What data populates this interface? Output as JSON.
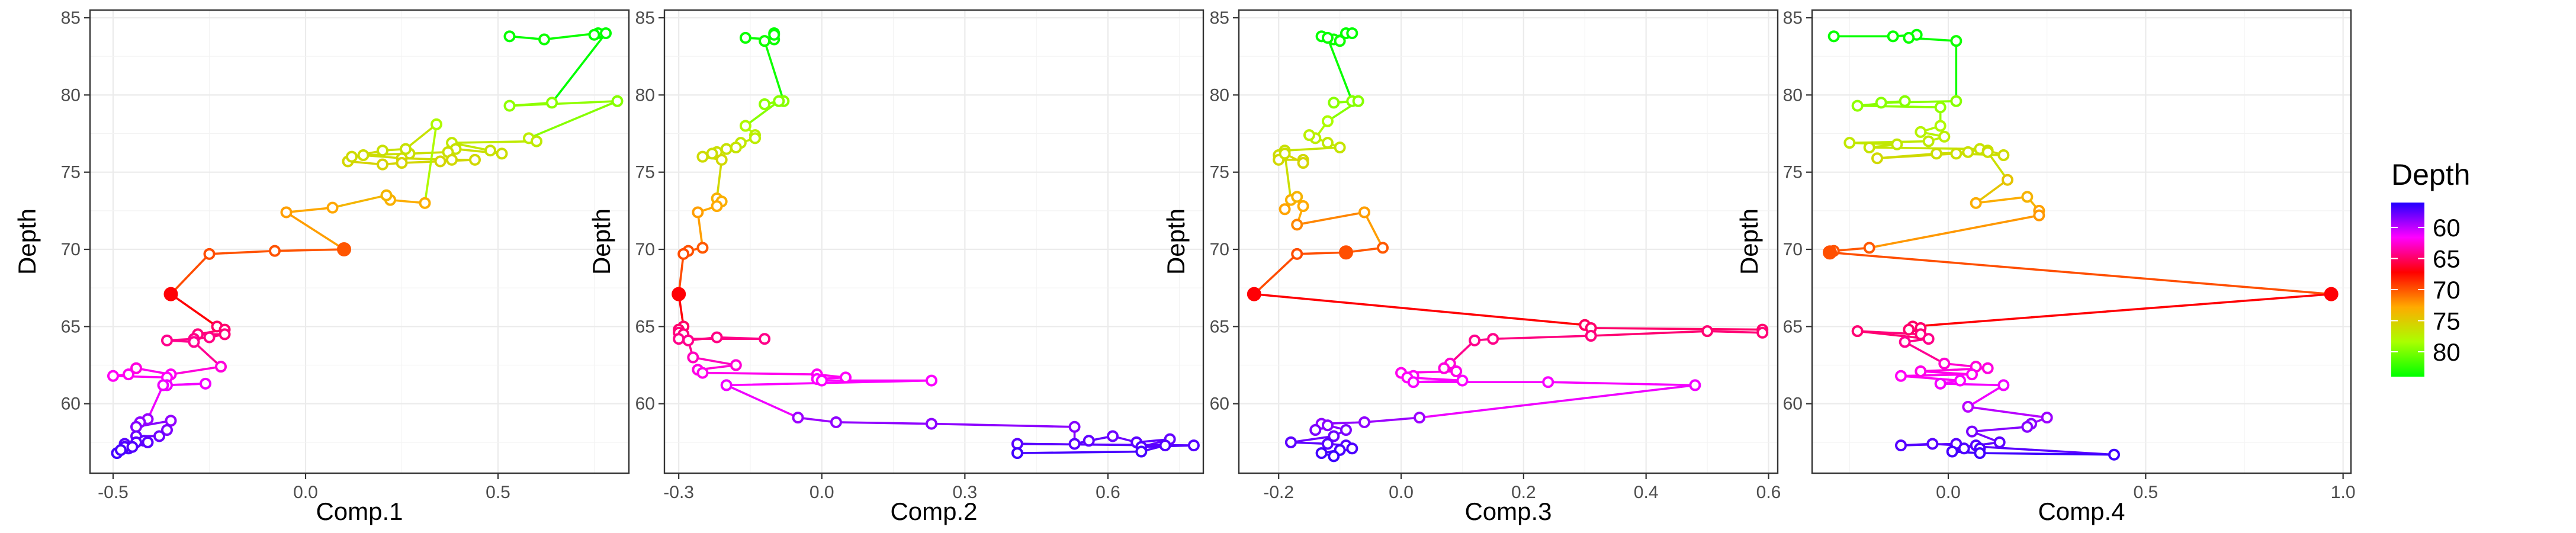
{
  "legend": {
    "title": "Depth",
    "labels": [
      "60",
      "65",
      "70",
      "75",
      "80"
    ],
    "values": [
      60,
      65,
      70,
      75,
      80
    ],
    "range": [
      56,
      84
    ],
    "gradient_colors": [
      "#2200ff",
      "#ff00ff",
      "#ff0000",
      "#ffaa00",
      "#aaff00",
      "#00ff00"
    ]
  },
  "chart_data": [
    {
      "type": "scatter",
      "connected": true,
      "xlabel": "Comp.1",
      "ylabel": "Depth",
      "xlim": [
        -0.56,
        0.84
      ],
      "ylim": [
        55.5,
        85.5
      ],
      "xticks": [
        -0.5,
        0.0,
        0.5
      ],
      "xtick_labels": [
        "-0.5",
        "0.0",
        "0.5"
      ],
      "yticks": [
        60,
        65,
        70,
        75,
        80,
        85
      ],
      "ytick_labels": [
        "60",
        "65",
        "70",
        "75",
        "80",
        "85"
      ],
      "highlight_depths": [
        67.1,
        69.8,
        70.0
      ],
      "grid": true,
      "points": [
        [
          0.53,
          83.8
        ],
        [
          0.62,
          83.6
        ],
        [
          0.76,
          84.0
        ],
        [
          0.75,
          83.9
        ],
        [
          0.78,
          84.0
        ],
        [
          0.64,
          79.5
        ],
        [
          0.53,
          79.3
        ],
        [
          0.81,
          79.6
        ],
        [
          0.58,
          77.2
        ],
        [
          0.6,
          77.0
        ],
        [
          0.38,
          76.9
        ],
        [
          0.48,
          76.4
        ],
        [
          0.51,
          76.2
        ],
        [
          0.39,
          76.5
        ],
        [
          0.37,
          76.3
        ],
        [
          0.27,
          76.2
        ],
        [
          0.15,
          76.1
        ],
        [
          0.25,
          75.9
        ],
        [
          0.38,
          75.8
        ],
        [
          0.44,
          75.8
        ],
        [
          0.35,
          75.7
        ],
        [
          0.25,
          75.6
        ],
        [
          0.2,
          75.5
        ],
        [
          0.11,
          75.7
        ],
        [
          0.12,
          76.0
        ],
        [
          0.2,
          76.4
        ],
        [
          0.26,
          76.5
        ],
        [
          0.34,
          78.1
        ],
        [
          0.31,
          73.0
        ],
        [
          0.22,
          73.2
        ],
        [
          0.21,
          73.5
        ],
        [
          0.07,
          72.7
        ],
        [
          -0.05,
          72.4
        ],
        [
          0.1,
          70.0
        ],
        [
          -0.08,
          69.9
        ],
        [
          -0.25,
          69.7
        ],
        [
          -0.35,
          67.1
        ],
        [
          -0.23,
          65.0
        ],
        [
          -0.21,
          64.8
        ],
        [
          -0.28,
          64.5
        ],
        [
          -0.21,
          64.5
        ],
        [
          -0.25,
          64.3
        ],
        [
          -0.29,
          64.2
        ],
        [
          -0.36,
          64.1
        ],
        [
          -0.29,
          64.0
        ],
        [
          -0.22,
          62.4
        ],
        [
          -0.35,
          61.9
        ],
        [
          -0.44,
          62.3
        ],
        [
          -0.46,
          61.9
        ],
        [
          -0.5,
          61.8
        ],
        [
          -0.36,
          61.7
        ],
        [
          -0.36,
          61.2
        ],
        [
          -0.26,
          61.3
        ],
        [
          -0.37,
          61.2
        ],
        [
          -0.41,
          59.0
        ],
        [
          -0.43,
          58.8
        ],
        [
          -0.44,
          58.5
        ],
        [
          -0.35,
          58.9
        ],
        [
          -0.36,
          58.3
        ],
        [
          -0.38,
          57.9
        ],
        [
          -0.44,
          57.9
        ],
        [
          -0.42,
          57.6
        ],
        [
          -0.44,
          57.5
        ],
        [
          -0.47,
          57.4
        ],
        [
          -0.46,
          57.1
        ],
        [
          -0.49,
          56.8
        ],
        [
          -0.47,
          57.2
        ],
        [
          -0.48,
          57.0
        ],
        [
          -0.41,
          57.5
        ],
        [
          -0.45,
          57.2
        ]
      ]
    },
    {
      "type": "scatter",
      "connected": true,
      "xlabel": "Comp.2",
      "ylabel": "Depth",
      "xlim": [
        -0.33,
        0.8
      ],
      "ylim": [
        55.5,
        85.5
      ],
      "xticks": [
        -0.3,
        0.0,
        0.3,
        0.6
      ],
      "xtick_labels": [
        "-0.3",
        "0.0",
        "0.3",
        "0.6"
      ],
      "yticks": [
        60,
        65,
        70,
        75,
        80,
        85
      ],
      "ytick_labels": [
        "60",
        "65",
        "70",
        "75",
        "80",
        "85"
      ],
      "highlight_depths": [
        67.1,
        69.8,
        70.0
      ],
      "grid": true,
      "points": [
        [
          -0.16,
          83.7
        ],
        [
          -0.1,
          83.6
        ],
        [
          -0.1,
          84.0
        ],
        [
          -0.1,
          83.9
        ],
        [
          -0.12,
          83.5
        ],
        [
          -0.08,
          79.6
        ],
        [
          -0.12,
          79.4
        ],
        [
          -0.09,
          79.6
        ],
        [
          -0.16,
          78.0
        ],
        [
          -0.14,
          77.4
        ],
        [
          -0.14,
          77.2
        ],
        [
          -0.17,
          76.9
        ],
        [
          -0.2,
          76.5
        ],
        [
          -0.22,
          76.3
        ],
        [
          -0.18,
          76.6
        ],
        [
          -0.23,
          76.2
        ],
        [
          -0.25,
          76.0
        ],
        [
          -0.21,
          75.8
        ],
        [
          -0.22,
          73.3
        ],
        [
          -0.21,
          73.1
        ],
        [
          -0.22,
          72.8
        ],
        [
          -0.26,
          72.4
        ],
        [
          -0.25,
          70.1
        ],
        [
          -0.28,
          69.9
        ],
        [
          -0.29,
          69.7
        ],
        [
          -0.3,
          67.1
        ],
        [
          -0.29,
          65.0
        ],
        [
          -0.3,
          64.8
        ],
        [
          -0.3,
          64.6
        ],
        [
          -0.29,
          64.5
        ],
        [
          -0.3,
          64.2
        ],
        [
          -0.12,
          64.2
        ],
        [
          -0.22,
          64.3
        ],
        [
          -0.28,
          64.1
        ],
        [
          -0.27,
          63.0
        ],
        [
          -0.18,
          62.5
        ],
        [
          -0.26,
          62.2
        ],
        [
          -0.25,
          62.0
        ],
        [
          -0.01,
          61.9
        ],
        [
          0.05,
          61.7
        ],
        [
          -0.01,
          61.6
        ],
        [
          0.0,
          61.5
        ],
        [
          0.23,
          61.5
        ],
        [
          -0.2,
          61.2
        ],
        [
          -0.05,
          59.1
        ],
        [
          0.03,
          58.8
        ],
        [
          0.23,
          58.7
        ],
        [
          0.53,
          58.5
        ],
        [
          0.53,
          57.4
        ],
        [
          0.56,
          57.6
        ],
        [
          0.61,
          57.9
        ],
        [
          0.66,
          57.5
        ],
        [
          0.73,
          57.7
        ],
        [
          0.67,
          57.2
        ],
        [
          0.78,
          57.3
        ],
        [
          0.41,
          57.4
        ],
        [
          0.72,
          57.3
        ],
        [
          0.67,
          56.9
        ],
        [
          0.41,
          56.8
        ]
      ]
    },
    {
      "type": "scatter",
      "connected": true,
      "xlabel": "Comp.3",
      "ylabel": "Depth",
      "xlim": [
        -0.265,
        0.615
      ],
      "ylim": [
        55.5,
        85.5
      ],
      "xticks": [
        -0.2,
        0.0,
        0.2,
        0.4,
        0.6
      ],
      "xtick_labels": [
        "-0.2",
        "0.0",
        "0.2",
        "0.4",
        "0.6"
      ],
      "yticks": [
        60,
        65,
        70,
        75,
        80,
        85
      ],
      "ytick_labels": [
        "60",
        "65",
        "70",
        "75",
        "80",
        "85"
      ],
      "highlight_depths": [
        67.1,
        69.8,
        70.0
      ],
      "grid": true,
      "points": [
        [
          -0.13,
          83.8
        ],
        [
          -0.11,
          83.6
        ],
        [
          -0.1,
          83.5
        ],
        [
          -0.09,
          84.0
        ],
        [
          -0.08,
          84.0
        ],
        [
          -0.12,
          83.7
        ],
        [
          -0.08,
          79.6
        ],
        [
          -0.11,
          79.5
        ],
        [
          -0.07,
          79.6
        ],
        [
          -0.12,
          78.3
        ],
        [
          -0.14,
          77.2
        ],
        [
          -0.15,
          77.4
        ],
        [
          -0.12,
          76.9
        ],
        [
          -0.1,
          76.6
        ],
        [
          -0.19,
          76.4
        ],
        [
          -0.2,
          76.1
        ],
        [
          -0.2,
          75.8
        ],
        [
          -0.16,
          75.8
        ],
        [
          -0.16,
          75.6
        ],
        [
          -0.19,
          76.2
        ],
        [
          -0.18,
          73.2
        ],
        [
          -0.19,
          72.6
        ],
        [
          -0.17,
          73.4
        ],
        [
          -0.16,
          72.8
        ],
        [
          -0.17,
          71.6
        ],
        [
          -0.06,
          72.4
        ],
        [
          -0.03,
          70.1
        ],
        [
          -0.09,
          69.8
        ],
        [
          -0.17,
          69.7
        ],
        [
          -0.24,
          67.1
        ],
        [
          0.3,
          65.1
        ],
        [
          0.31,
          64.9
        ],
        [
          0.59,
          64.8
        ],
        [
          0.59,
          64.6
        ],
        [
          0.5,
          64.7
        ],
        [
          0.31,
          64.4
        ],
        [
          0.15,
          64.2
        ],
        [
          0.12,
          64.1
        ],
        [
          0.08,
          62.6
        ],
        [
          0.07,
          62.3
        ],
        [
          0.09,
          62.1
        ],
        [
          0.0,
          62.0
        ],
        [
          0.02,
          61.8
        ],
        [
          0.01,
          61.7
        ],
        [
          0.1,
          61.5
        ],
        [
          0.02,
          61.4
        ],
        [
          0.24,
          61.4
        ],
        [
          0.48,
          61.2
        ],
        [
          0.03,
          59.1
        ],
        [
          -0.06,
          58.8
        ],
        [
          -0.13,
          58.7
        ],
        [
          -0.14,
          58.3
        ],
        [
          -0.12,
          58.6
        ],
        [
          -0.09,
          58.3
        ],
        [
          -0.11,
          57.9
        ],
        [
          -0.18,
          57.5
        ],
        [
          -0.12,
          57.4
        ],
        [
          -0.09,
          57.3
        ],
        [
          -0.08,
          57.1
        ],
        [
          -0.1,
          57.0
        ],
        [
          -0.13,
          56.8
        ],
        [
          -0.11,
          56.6
        ]
      ]
    },
    {
      "type": "scatter",
      "connected": true,
      "xlabel": "Comp.4",
      "ylabel": "Depth",
      "xlim": [
        -0.345,
        1.02
      ],
      "ylim": [
        55.5,
        85.5
      ],
      "xticks": [
        0.0,
        0.5,
        1.0
      ],
      "xtick_labels": [
        "0.0",
        "0.5",
        "1.0"
      ],
      "yticks": [
        60,
        65,
        70,
        75,
        80,
        85
      ],
      "ytick_labels": [
        "60",
        "65",
        "70",
        "75",
        "80",
        "85"
      ],
      "highlight_depths": [
        67.1,
        69.8,
        70.0
      ],
      "grid": true,
      "points": [
        [
          -0.29,
          83.8
        ],
        [
          -0.14,
          83.8
        ],
        [
          -0.08,
          83.9
        ],
        [
          -0.1,
          83.7
        ],
        [
          0.02,
          83.5
        ],
        [
          0.02,
          79.6
        ],
        [
          -0.17,
          79.5
        ],
        [
          -0.11,
          79.6
        ],
        [
          -0.23,
          79.3
        ],
        [
          -0.02,
          79.2
        ],
        [
          -0.02,
          78.0
        ],
        [
          -0.07,
          77.6
        ],
        [
          -0.01,
          77.3
        ],
        [
          -0.05,
          77.0
        ],
        [
          -0.25,
          76.9
        ],
        [
          -0.13,
          76.8
        ],
        [
          -0.2,
          76.6
        ],
        [
          0.08,
          76.5
        ],
        [
          0.05,
          76.3
        ],
        [
          -0.03,
          76.2
        ],
        [
          -0.18,
          75.9
        ],
        [
          0.02,
          76.2
        ],
        [
          0.14,
          76.1
        ],
        [
          0.1,
          76.4
        ],
        [
          0.1,
          76.3
        ],
        [
          0.15,
          74.5
        ],
        [
          0.07,
          73.0
        ],
        [
          0.2,
          73.4
        ],
        [
          0.23,
          72.5
        ],
        [
          0.23,
          72.2
        ],
        [
          -0.2,
          70.1
        ],
        [
          -0.29,
          69.9
        ],
        [
          -0.3,
          69.8
        ],
        [
          0.97,
          67.1
        ],
        [
          -0.09,
          65.0
        ],
        [
          -0.1,
          64.8
        ],
        [
          -0.07,
          64.9
        ],
        [
          -0.07,
          64.5
        ],
        [
          -0.23,
          64.7
        ],
        [
          -0.05,
          64.2
        ],
        [
          -0.11,
          64.0
        ],
        [
          -0.01,
          62.6
        ],
        [
          0.07,
          62.4
        ],
        [
          0.1,
          62.3
        ],
        [
          -0.07,
          62.1
        ],
        [
          0.06,
          61.9
        ],
        [
          -0.12,
          61.8
        ],
        [
          0.03,
          61.5
        ],
        [
          -0.02,
          61.3
        ],
        [
          0.14,
          61.2
        ],
        [
          0.05,
          59.8
        ],
        [
          0.25,
          59.1
        ],
        [
          0.21,
          58.7
        ],
        [
          0.2,
          58.5
        ],
        [
          0.06,
          58.2
        ],
        [
          0.13,
          57.5
        ],
        [
          0.07,
          57.3
        ],
        [
          0.08,
          57.1
        ],
        [
          0.02,
          57.4
        ],
        [
          -0.12,
          57.3
        ],
        [
          -0.04,
          57.4
        ],
        [
          0.42,
          56.7
        ],
        [
          0.08,
          56.8
        ],
        [
          0.01,
          56.9
        ],
        [
          0.04,
          57.1
        ]
      ]
    }
  ]
}
